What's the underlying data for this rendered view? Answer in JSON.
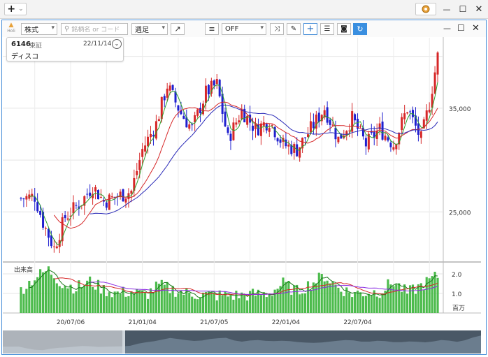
{
  "app": {
    "add_label": "+",
    "add_caret": "⌄"
  },
  "window_controls": {
    "minimize": "—",
    "maximize": "☐",
    "close": "✕"
  },
  "toolbar": {
    "logo_label": "Holi",
    "asset_type": "株式",
    "search_placeholder": "銘柄名 or コード",
    "period": "週足",
    "indicator_mode": "OFF"
  },
  "stock": {
    "code": "6146",
    "market": "東証",
    "date": "22/11/14",
    "name": "ディスコ"
  },
  "chart_data": {
    "type": "candlestick",
    "price_axis": {
      "ticks": [
        25000,
        35000
      ],
      "tick_labels": [
        "25,000",
        "35,000"
      ],
      "range": [
        20300,
        41800
      ]
    },
    "volume_axis": {
      "ticks": [
        1.0,
        2.0
      ],
      "tick_labels": [
        "1.0",
        "2.0"
      ],
      "unit": "百万",
      "range": [
        0,
        2.5
      ]
    },
    "volume_label": "出来高",
    "x_tick_labels": [
      "20/07/06",
      "21/01/04",
      "21/07/05",
      "22/01/04",
      "22/07/04"
    ],
    "series_colors": {
      "up": "#d62728",
      "down": "#1f1fcf",
      "ma_short": "#2ca02c",
      "ma_mid": "#d62728",
      "ma_long": "#2b2bb8",
      "volume": "#4cbb4c"
    },
    "weeks": 152,
    "close_points": [
      [
        0,
        26300
      ],
      [
        5,
        26500
      ],
      [
        8,
        24000
      ],
      [
        12,
        21500
      ],
      [
        16,
        24500
      ],
      [
        22,
        26000
      ],
      [
        26,
        27500
      ],
      [
        30,
        26000
      ],
      [
        35,
        26500
      ],
      [
        40,
        27000
      ],
      [
        44,
        31000
      ],
      [
        49,
        33500
      ],
      [
        53,
        37200
      ],
      [
        58,
        34500
      ],
      [
        62,
        33000
      ],
      [
        67,
        36500
      ],
      [
        71,
        37300
      ],
      [
        75,
        32000
      ],
      [
        80,
        34800
      ],
      [
        85,
        33000
      ],
      [
        90,
        33800
      ],
      [
        95,
        31500
      ],
      [
        100,
        31000
      ],
      [
        105,
        33000
      ],
      [
        110,
        35000
      ],
      [
        115,
        32000
      ],
      [
        120,
        34000
      ],
      [
        125,
        31500
      ],
      [
        130,
        33000
      ],
      [
        135,
        31500
      ],
      [
        140,
        35000
      ],
      [
        145,
        32000
      ],
      [
        148,
        35500
      ],
      [
        151,
        40000
      ]
    ],
    "volume_points": [
      [
        0,
        1.2
      ],
      [
        5,
        1.8
      ],
      [
        10,
        2.2
      ],
      [
        15,
        1.5
      ],
      [
        20,
        1.3
      ],
      [
        25,
        1.6
      ],
      [
        30,
        1.2
      ],
      [
        35,
        1.0
      ],
      [
        40,
        1.1
      ],
      [
        45,
        0.9
      ],
      [
        50,
        1.4
      ],
      [
        55,
        1.2
      ],
      [
        60,
        1.0
      ],
      [
        70,
        0.9
      ],
      [
        80,
        0.9
      ],
      [
        90,
        1.0
      ],
      [
        95,
        1.5
      ],
      [
        100,
        1.1
      ],
      [
        110,
        1.9
      ],
      [
        115,
        1.3
      ],
      [
        120,
        1.0
      ],
      [
        130,
        1.1
      ],
      [
        135,
        1.6
      ],
      [
        140,
        1.0
      ],
      [
        145,
        1.4
      ],
      [
        151,
        1.9
      ]
    ]
  }
}
